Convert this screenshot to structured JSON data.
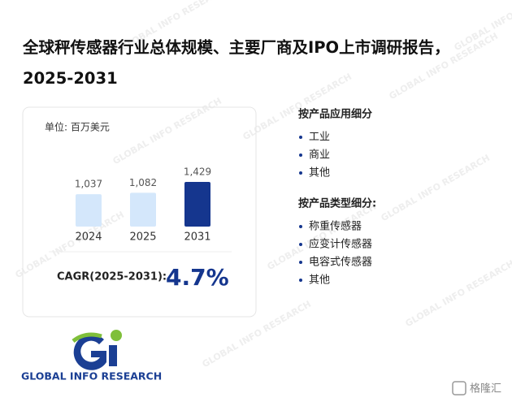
{
  "title": "全球秤传感器行业总体规模、主要厂商及IPO上市调研报告，2025-2031",
  "chart_data": {
    "type": "bar",
    "unit": "单位: 百万美元",
    "categories": [
      "2024",
      "2025",
      "2031"
    ],
    "values": [
      1037,
      1082,
      1429
    ],
    "value_labels": [
      "1,037",
      "1,082",
      "1,429"
    ],
    "colors": [
      "#d4e7fb",
      "#d4e7fb",
      "#15368e"
    ],
    "cagr_label": "CAGR(2025-2031):",
    "cagr": "4.7%"
  },
  "segments": [
    {
      "title": "按产品应用细分",
      "items": [
        "工业",
        "商业",
        "其他"
      ]
    },
    {
      "title": "按产品类型细分:",
      "items": [
        "称重传感器",
        "应变计传感器",
        "电容式传感器",
        "其他"
      ]
    }
  ],
  "logo_text": "GLOBAL INFO RESEARCH",
  "watermark": "GLOBAL INFO RESEARCH",
  "source_mark": "格隆汇"
}
